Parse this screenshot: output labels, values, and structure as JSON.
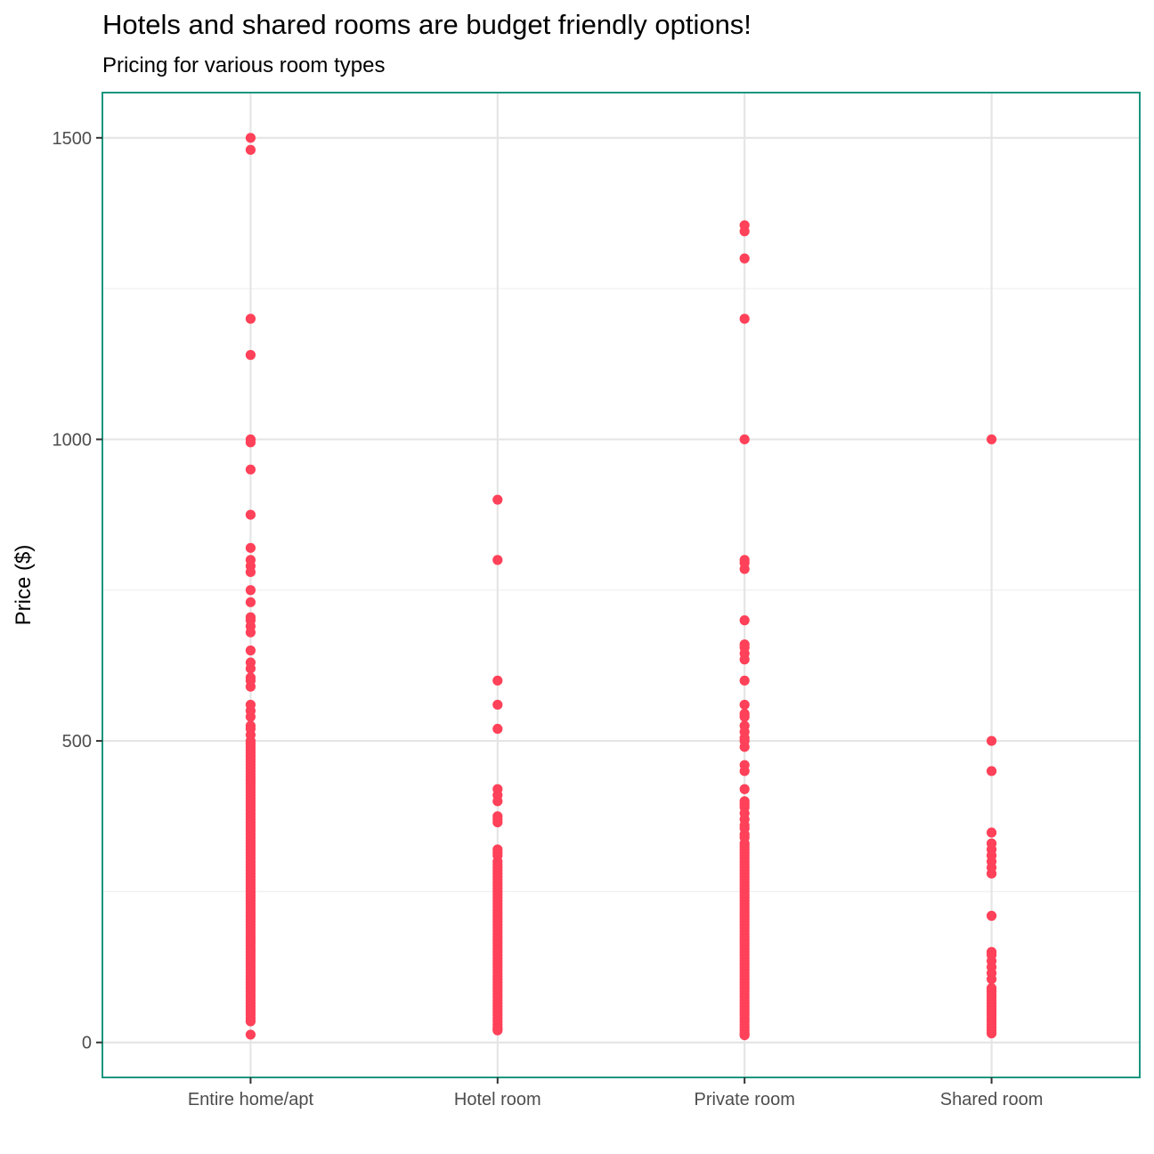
{
  "chart_data": {
    "type": "scatter",
    "title": "Hotels and shared rooms are budget friendly options!",
    "subtitle": "Pricing for various room types",
    "xlabel": "",
    "ylabel": "Price ($)",
    "categories": [
      "Entire home/apt",
      "Hotel room",
      "Private room",
      "Shared room"
    ],
    "ylim": [
      -58,
      1575
    ],
    "yticks": [
      0,
      500,
      1000,
      1500
    ],
    "grid": true,
    "legend": "none",
    "colors": {
      "point": "#FF4159",
      "panel_border": "#1A9680",
      "grid_major": "#E5E5E5",
      "grid_minor": "#F0F0F0"
    },
    "series": [
      {
        "category": "Entire home/apt",
        "values": [
          1500,
          1480,
          1200,
          1140,
          1000,
          995,
          950,
          875,
          820,
          800,
          790,
          780,
          750,
          730,
          705,
          700,
          690,
          680,
          650,
          630,
          620,
          605,
          600,
          590,
          560,
          550,
          540,
          525,
          520,
          510,
          500,
          495,
          490,
          485,
          480,
          475,
          470,
          465,
          460,
          455,
          450,
          445,
          440,
          435,
          430,
          425,
          420,
          415,
          410,
          405,
          400,
          395,
          390,
          385,
          380,
          375,
          370,
          365,
          360,
          355,
          350,
          345,
          340,
          335,
          330,
          325,
          320,
          315,
          310,
          305,
          300,
          295,
          290,
          285,
          280,
          275,
          270,
          265,
          260,
          255,
          250,
          245,
          240,
          235,
          230,
          225,
          220,
          215,
          210,
          205,
          200,
          195,
          190,
          185,
          180,
          175,
          170,
          165,
          160,
          155,
          150,
          145,
          140,
          135,
          130,
          125,
          120,
          115,
          110,
          105,
          100,
          95,
          90,
          85,
          80,
          75,
          70,
          65,
          60,
          55,
          50,
          45,
          40,
          35,
          13
        ]
      },
      {
        "category": "Hotel room",
        "values": [
          900,
          800,
          600,
          560,
          520,
          420,
          410,
          400,
          375,
          370,
          365,
          320,
          315,
          310,
          300,
          295,
          290,
          285,
          280,
          275,
          270,
          265,
          260,
          255,
          250,
          245,
          240,
          235,
          230,
          225,
          220,
          215,
          210,
          205,
          200,
          195,
          190,
          185,
          180,
          175,
          170,
          165,
          160,
          155,
          150,
          145,
          140,
          135,
          130,
          125,
          120,
          115,
          110,
          105,
          100,
          95,
          90,
          85,
          80,
          75,
          70,
          65,
          60,
          55,
          50,
          45,
          40,
          35,
          30,
          25,
          22,
          20
        ]
      },
      {
        "category": "Private room",
        "values": [
          1355,
          1345,
          1300,
          1200,
          1000,
          800,
          795,
          785,
          700,
          660,
          655,
          645,
          635,
          600,
          560,
          545,
          540,
          525,
          515,
          505,
          500,
          490,
          460,
          450,
          420,
          400,
          395,
          390,
          380,
          370,
          360,
          355,
          345,
          340,
          330,
          325,
          320,
          315,
          310,
          305,
          300,
          295,
          290,
          285,
          280,
          275,
          270,
          265,
          260,
          255,
          250,
          245,
          240,
          235,
          230,
          225,
          220,
          215,
          210,
          205,
          200,
          195,
          190,
          185,
          180,
          175,
          170,
          165,
          160,
          155,
          150,
          145,
          140,
          135,
          130,
          125,
          120,
          115,
          110,
          105,
          100,
          95,
          90,
          85,
          80,
          75,
          70,
          65,
          60,
          55,
          50,
          45,
          40,
          35,
          30,
          25,
          20,
          15,
          12
        ]
      },
      {
        "category": "Shared room",
        "values": [
          1000,
          500,
          450,
          348,
          330,
          320,
          310,
          300,
          290,
          280,
          210,
          150,
          145,
          135,
          125,
          115,
          105,
          90,
          85,
          80,
          75,
          70,
          65,
          60,
          55,
          50,
          45,
          40,
          35,
          30,
          25,
          20,
          15
        ]
      }
    ]
  }
}
